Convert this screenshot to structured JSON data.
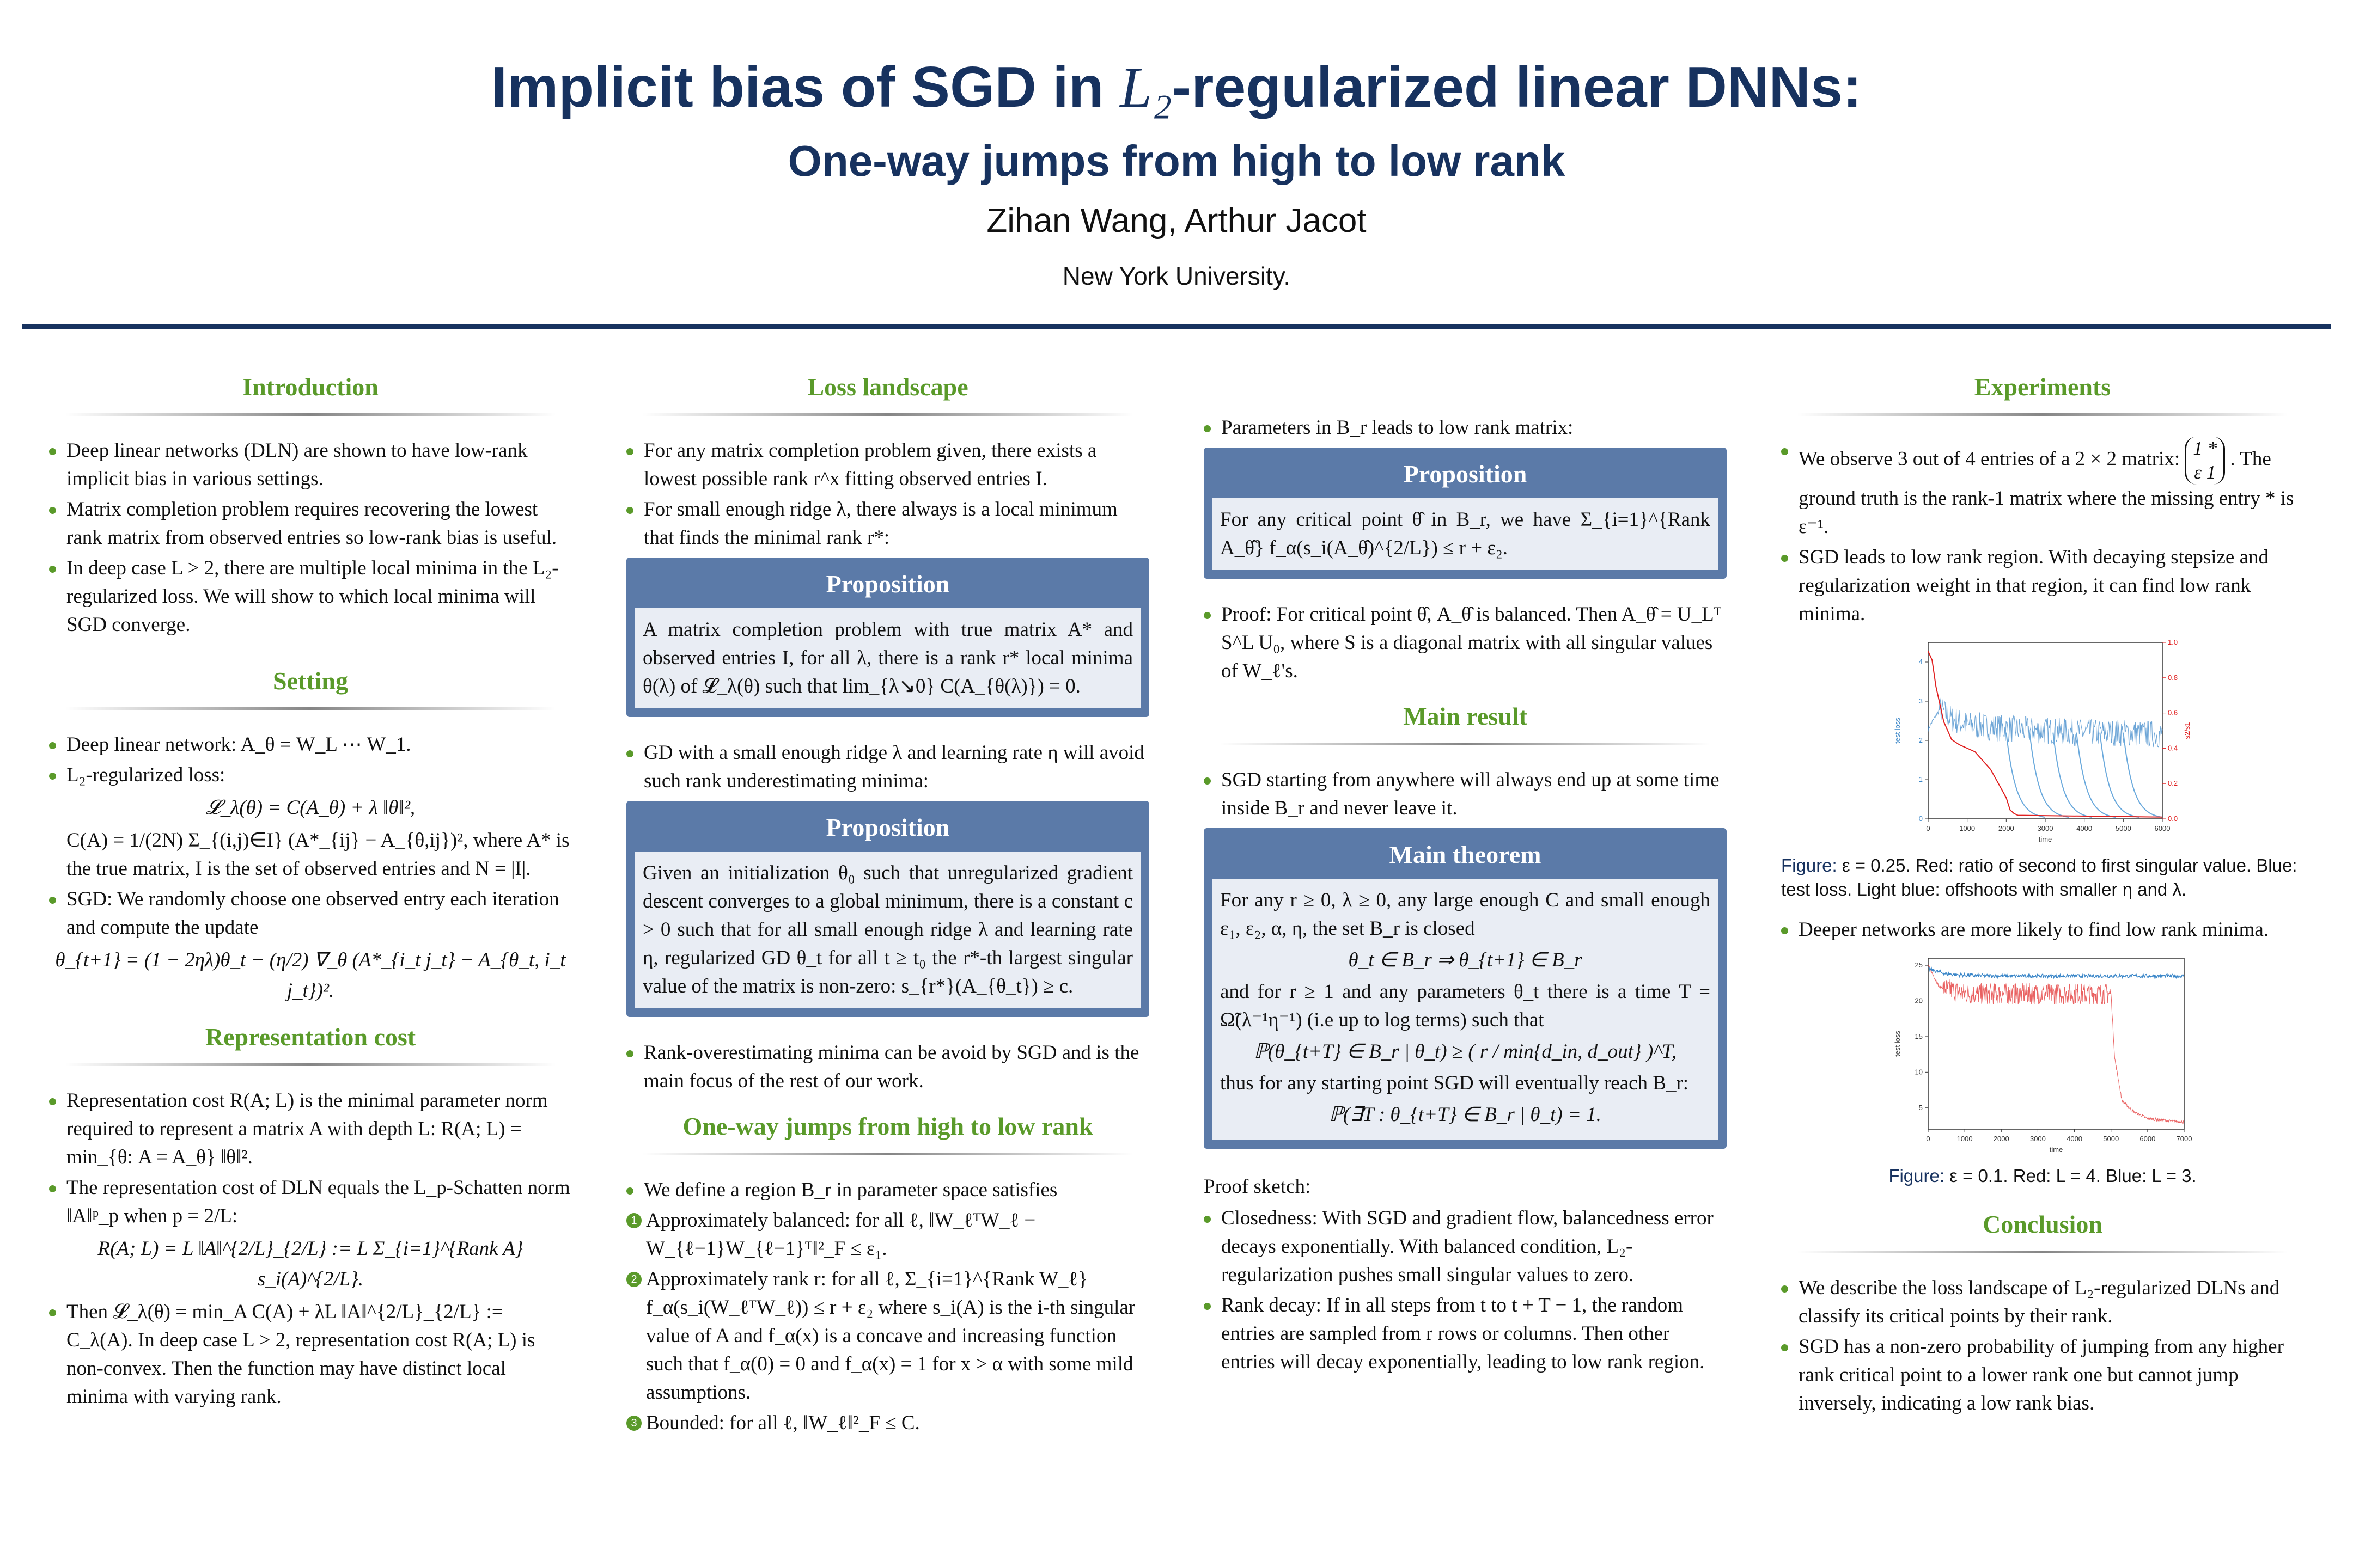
{
  "header": {
    "title_part1": "Implicit bias of SGD in ",
    "title_math": "L₂",
    "title_part2": "-regularized linear DNNs:",
    "subtitle": "One-way jumps from high to low rank",
    "authors": "Zihan Wang, Arthur Jacot",
    "affiliation": "New York University."
  },
  "introduction": {
    "heading": "Introduction",
    "bullets": [
      "Deep linear networks (DLN) are shown to have low-rank implicit bias in various settings.",
      "Matrix completion problem requires recovering the lowest rank matrix from observed entries so low-rank bias is useful.",
      "In deep case L > 2, there are multiple local minima in the L₂-regularized loss. We will show to which local minima will SGD converge."
    ]
  },
  "setting": {
    "heading": "Setting",
    "b1": "Deep linear network: A_θ = W_L ⋯ W_1.",
    "b2": "L₂-regularized loss:",
    "eq1": "𝓛_λ(θ) = C(A_θ) + λ ‖θ‖²,",
    "b2_cont": "C(A) = 1/(2N) Σ_{(i,j)∈I} (A*_{ij} − A_{θ,ij})², where A* is the true matrix, I is the set of observed entries and N = |I|.",
    "b3": "SGD: We randomly choose one observed entry each iteration and compute the update",
    "eq2": "θ_{t+1} = (1 − 2ηλ)θ_t − (η/2) ∇_θ (A*_{i_t j_t} − A_{θ_t, i_t j_t})²."
  },
  "representation": {
    "heading": "Representation cost",
    "b1": "Representation cost R(A; L) is the minimal parameter norm required to represent a matrix A with depth L: R(A; L) = min_{θ: A = A_θ} ‖θ‖².",
    "b2": "The representation cost of DLN equals the L_p-Schatten norm ‖A‖ᵖ_p when p = 2/L:",
    "eq1": "R(A; L) = L ‖A‖^{2/L}_{2/L} := L Σ_{i=1}^{Rank A} s_i(A)^{2/L}.",
    "b3": "Then 𝓛_λ(θ) = min_A C(A) + λL ‖A‖^{2/L}_{2/L} := C_λ(A). In deep case L > 2, representation cost R(A; L) is non-convex. Then the function may have distinct local minima with varying rank."
  },
  "loss_landscape": {
    "heading": "Loss landscape",
    "b1": "For any matrix completion problem given, there exists a lowest possible rank r^x fitting observed entries I.",
    "b2": "For small enough ridge λ, there always is a local minimum that finds the minimal rank r*:",
    "prop1_title": "Proposition",
    "prop1_body": "A matrix completion problem with true matrix A* and observed entries I, for all λ, there is a rank r* local minima θ(λ) of 𝓛_λ(θ) such that lim_{λ↘0} C(A_{θ(λ)}) = 0.",
    "b3": "GD with a small enough ridge λ and learning rate η will avoid such rank underestimating minima:",
    "prop2_title": "Proposition",
    "prop2_body": "Given an initialization θ₀ such that unregularized gradient descent converges to a global minimum, there is a constant c > 0 such that for all small enough ridge λ and learning rate η, regularized GD θ_t for all t ≥ t₀ the r*-th largest singular value of the matrix is non-zero: s_{r*}(A_{θ_t}) ≥ c.",
    "b4": "Rank-overestimating minima can be avoid by SGD and is the main focus of the rest of our work."
  },
  "one_way": {
    "heading": "One-way jumps from high to low rank",
    "b1": "We define a region B_r in parameter space satisfies",
    "items": [
      {
        "n": "1",
        "text": "Approximately balanced: for all ℓ, ‖W_ℓᵀW_ℓ − W_{ℓ−1}W_{ℓ−1}ᵀ‖²_F ≤ ε₁."
      },
      {
        "n": "2",
        "text": "Approximately rank r: for all ℓ, Σ_{i=1}^{Rank W_ℓ} f_α(s_i(W_ℓᵀW_ℓ)) ≤ r + ε₂ where s_i(A) is the i-th singular value of A and f_α(x) is a concave and increasing function such that f_α(0) = 0 and f_α(x) = 1 for x > α with some mild assumptions."
      },
      {
        "n": "3",
        "text": "Bounded: for all ℓ, ‖W_ℓ‖²_F ≤ C."
      }
    ]
  },
  "col3": {
    "b1": "Parameters in B_r leads to low rank matrix:",
    "prop_title": "Proposition",
    "prop_body": "For any critical point θ̂ in B_r, we have Σ_{i=1}^{Rank A_θ̂} f_α(s_i(A_θ̂)^{2/L}) ≤ r + ε₂.",
    "b2": "Proof: For critical point θ̂, A_θ̂ is balanced. Then A_θ̂ = U_Lᵀ S^L U₀, where S is a diagonal matrix with all singular values of W_ℓ's.",
    "main_heading": "Main result",
    "b3": "SGD starting from anywhere will always end up at some time inside B_r and never leave it.",
    "thm_title": "Main theorem",
    "thm_p1": "For any r ≥ 0, λ ≥ 0, any large enough C and small enough ε₁, ε₂, α, η, the set B_r is closed",
    "thm_eq1": "θ_t ∈ B_r ⇒ θ_{t+1} ∈ B_r",
    "thm_p2": "and for r ≥ 1 and any parameters θ_t there is a time T = Ω̃(λ⁻¹η⁻¹) (i.e up to log terms) such that",
    "thm_eq2": "ℙ(θ_{t+T} ∈ B_r | θ_t) ≥ ( r / min{d_in, d_out} )^T,",
    "thm_p3": "thus for any starting point SGD will eventually reach B_r:",
    "thm_eq3": "ℙ(∃T : θ_{t+T} ∈ B_r | θ_t) = 1.",
    "proof_sketch": "Proof sketch:",
    "b4": "Closedness: With SGD and gradient flow, balancedness error decays exponentially. With balanced condition, L₂-regularization pushes small singular values to zero.",
    "b5": "Rank decay: If in all steps from t to t + T − 1, the random entries are sampled from r rows or columns. Then other entries will decay exponentially, leading to low rank region."
  },
  "experiments": {
    "heading": "Experiments",
    "b1_pre": "We observe 3 out of 4 entries of a 2 × 2 matrix:",
    "matrix_r1": "1 *",
    "matrix_r2": "ε 1",
    "b1_post": "The ground truth is the rank-1 matrix where the missing entry * is ε⁻¹.",
    "b2": "SGD leads to low rank region. With decaying stepsize and regularization weight in that region, it can find low rank minima.",
    "fig1_label": "Figure:",
    "fig1_caption": " ε = 0.25. Red: ratio of second to first singular value. Blue: test loss. Light blue: offshoots with smaller η and λ.",
    "b3": "Deeper networks are more likely to find low rank minima.",
    "fig2_label": "Figure:",
    "fig2_caption": " ε = 0.1. Red: L = 4. Blue: L = 3.",
    "conclusion_heading": "Conclusion",
    "c1": "We describe the loss landscape of L₂-regularized DLNs and classify its critical points by their rank.",
    "c2": "SGD has a non-zero probability of jumping from any higher rank critical point to a lower rank one but cannot jump inversely, indicating a low rank bias."
  },
  "chart_data": [
    {
      "type": "line",
      "xlabel": "time",
      "ylabel": "test loss",
      "ylabel_right": "s2/s1",
      "x_ticks": [
        "0",
        "1000",
        "2000",
        "3000",
        "4000",
        "5000",
        "6000"
      ],
      "y_ticks": [
        "0",
        "1",
        "2",
        "3",
        "4"
      ],
      "y2_ticks": [
        "0.0",
        "0.2",
        "0.4",
        "0.6",
        "0.8",
        "1.0"
      ],
      "xlim": [
        0,
        6000
      ],
      "ylim": [
        0,
        4.5
      ],
      "y2lim": [
        0,
        1.0
      ],
      "series": [
        {
          "name": "Red",
          "color": "#e02020",
          "x": [
            0,
            100,
            200,
            400,
            600,
            800,
            1000,
            1200,
            1400,
            1600,
            1800,
            2000,
            2100,
            2200,
            2300,
            6000
          ],
          "values": [
            0.95,
            0.9,
            0.75,
            0.55,
            0.45,
            0.42,
            0.4,
            0.38,
            0.33,
            0.28,
            0.2,
            0.12,
            0.05,
            0.03,
            0.02,
            0.01
          ]
        },
        {
          "name": "Blue",
          "color": "#3a86c8",
          "x": [
            0,
            300,
            600,
            1000,
            2000,
            3000,
            4000,
            5000,
            6000
          ],
          "values": [
            2.3,
            2.8,
            2.55,
            2.4,
            2.3,
            2.25,
            2.2,
            2.2,
            2.15
          ]
        }
      ],
      "offshoot_starts": [
        2000,
        2600,
        3200,
        3800,
        4400,
        5000
      ]
    },
    {
      "type": "line",
      "xlabel": "time",
      "ylabel": "test loss",
      "x_ticks": [
        "0",
        "1000",
        "2000",
        "3000",
        "4000",
        "5000",
        "6000",
        "7000"
      ],
      "y_ticks": [
        "5",
        "10",
        "15",
        "20",
        "25"
      ],
      "xlim": [
        0,
        7000
      ],
      "ylim": [
        2,
        26
      ],
      "series": [
        {
          "name": "Red",
          "color": "#e02020",
          "x": [
            0,
            300,
            1000,
            2000,
            3000,
            4000,
            5000,
            5100,
            5300,
            5600,
            6000,
            6500,
            7000
          ],
          "values": [
            25,
            22,
            21,
            21,
            21,
            21,
            21,
            12,
            6,
            4.5,
            3.5,
            3.2,
            3.0
          ]
        },
        {
          "name": "Blue",
          "color": "#3a86c8",
          "x": [
            0,
            500,
            1000,
            2000,
            3000,
            4000,
            5000,
            6000,
            7000
          ],
          "values": [
            24.5,
            23.8,
            23.6,
            23.5,
            23.5,
            23.5,
            23.5,
            23.5,
            23.5
          ]
        }
      ]
    }
  ]
}
